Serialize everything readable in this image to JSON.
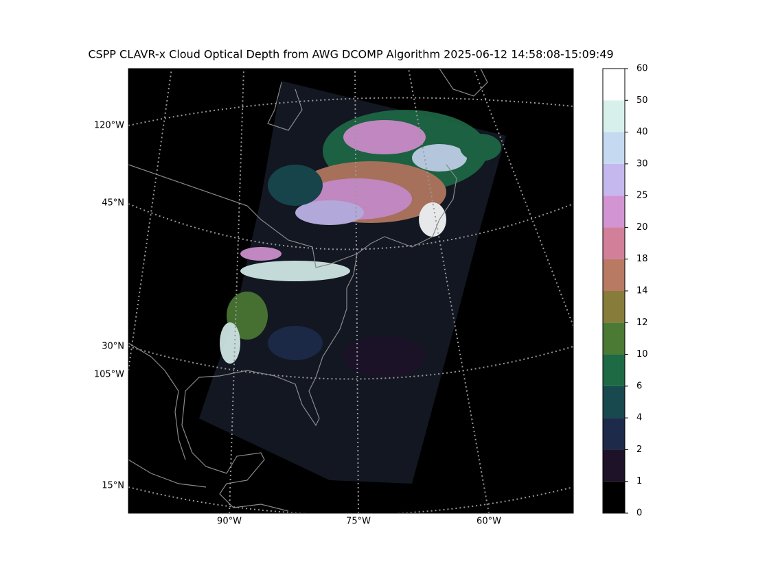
{
  "map": {
    "title": "CSPP CLAVR-x Cloud Optical Depth from AWG DCOMP Algorithm 2025-06-12 14:58:08-15:09:49",
    "left_labels": [
      "120°W",
      "45°N",
      "30°N",
      "105°W",
      "15°N"
    ],
    "bottom_labels": [
      "90°W",
      "75°W",
      "60°W"
    ],
    "colorbar": {
      "ticks": [
        0,
        1,
        2,
        4,
        6,
        10,
        12,
        14,
        18,
        20,
        25,
        30,
        40,
        50,
        60
      ],
      "colors": [
        "#000000",
        "#1e1228",
        "#1d2a4a",
        "#17494f",
        "#1e6a45",
        "#4b7a34",
        "#877c3a",
        "#b87a62",
        "#d27f9a",
        "#d394d3",
        "#c5b8ee",
        "#c5d9f1",
        "#d8f0ec",
        "#ffffff"
      ]
    }
  }
}
